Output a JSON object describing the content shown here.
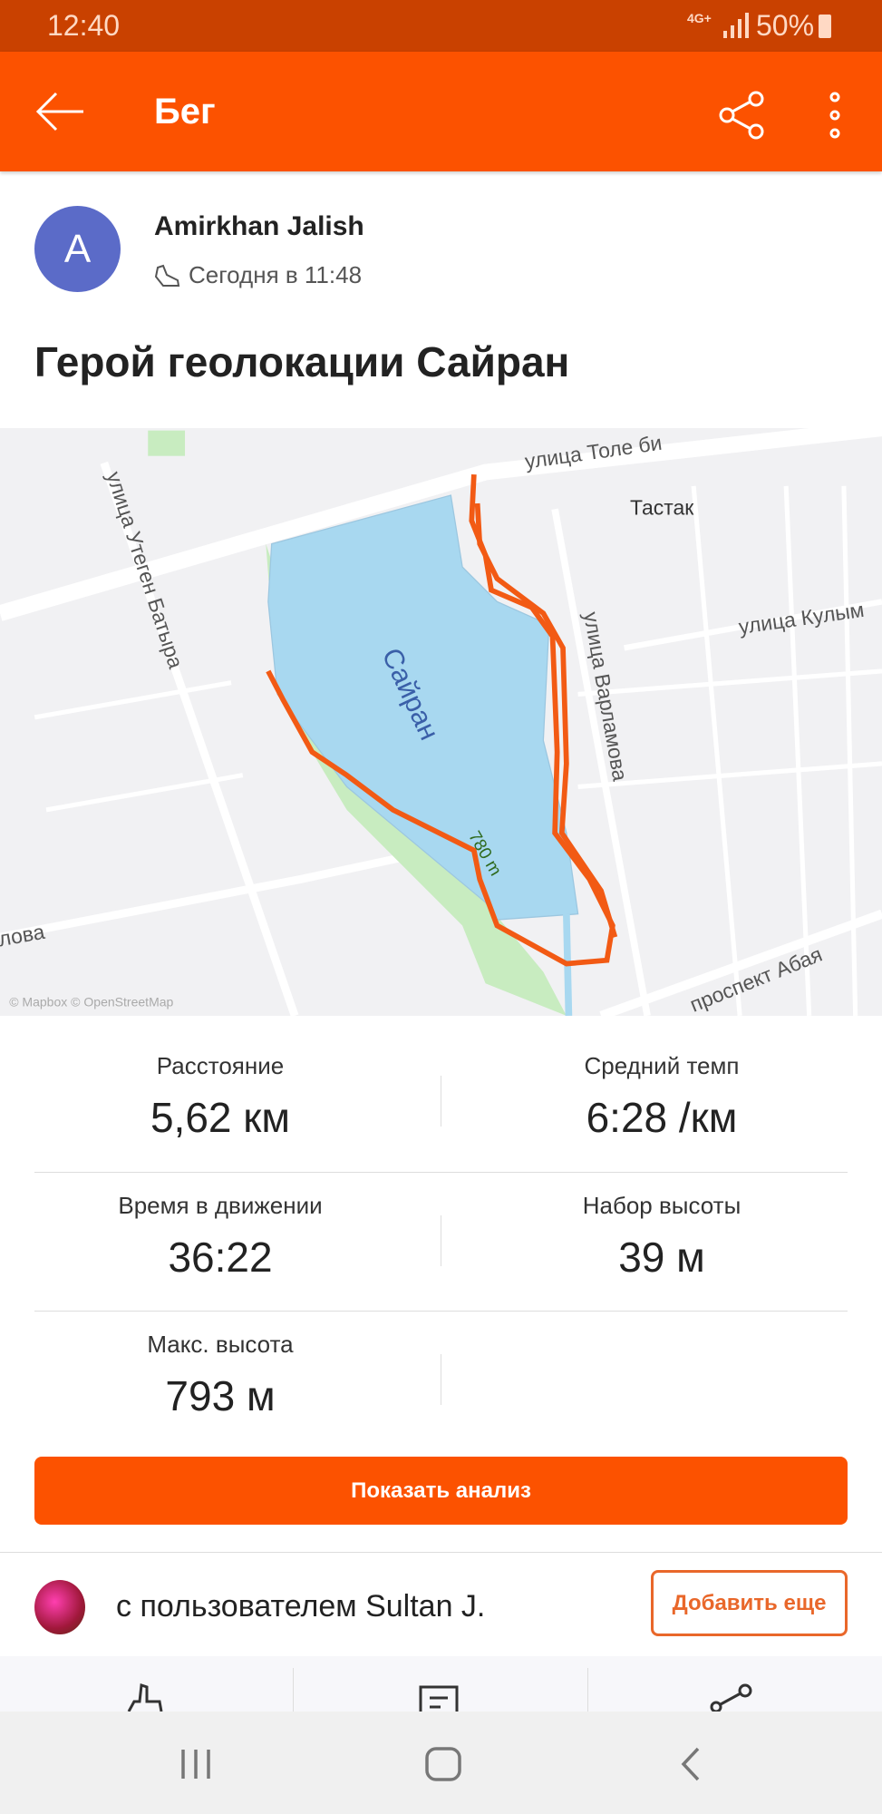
{
  "status_bar": {
    "time": "12:40",
    "network": "4G+",
    "battery": "50%"
  },
  "header": {
    "title": "Бег",
    "back_icon": "arrow-left-icon",
    "share_icon": "share-icon",
    "more_icon": "more-vertical-icon"
  },
  "activity": {
    "athlete": "Amirkhan Jalish",
    "avatar_letter": "A",
    "avatar_color": "#5b6bc8",
    "time": "Сегодня в 11:48",
    "title": "Герой геолокации Сайран"
  },
  "map": {
    "labels": {
      "street1": "улица Толе би",
      "district": "Тастак",
      "street2": "улица Кулым",
      "lake": "Сайран",
      "street3": "улица Варламова",
      "street4": "улица Утеген Батыра",
      "elev": "780 m",
      "street5": "проспект Абая",
      "street6": "лова",
      "attribution": "© Mapbox © OpenStreetMap"
    },
    "route_color": "#fc4c02"
  },
  "stats": [
    {
      "label": "Расстояние",
      "value": "5,62 км"
    },
    {
      "label": "Средний темп",
      "value": "6:28 /км"
    },
    {
      "label": "Время в движении",
      "value": "36:22"
    },
    {
      "label": "Набор высоты",
      "value": "39 м"
    },
    {
      "label": "Макс. высота",
      "value": "793 м"
    }
  ],
  "analyze_button": "Показать анализ",
  "companion": {
    "text": "с пользователем Sultan J.",
    "add_button": "Добавить еще"
  },
  "accent": "#fc5200"
}
